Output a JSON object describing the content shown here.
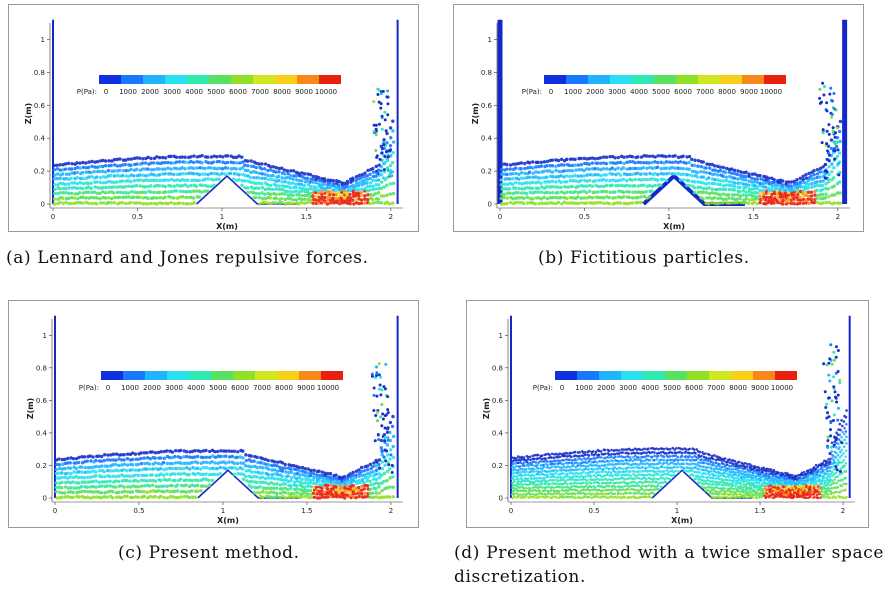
{
  "colorbar": {
    "label": "P(Pa):",
    "ticks": [
      "0",
      "1000",
      "2000",
      "3000",
      "4000",
      "5000",
      "6000",
      "7000",
      "8000",
      "9000",
      "10000"
    ],
    "colors": [
      "#1030e0",
      "#1a78ff",
      "#20b4ff",
      "#28e0f0",
      "#30e8b0",
      "#58e060",
      "#90e028",
      "#d0e820",
      "#f8d018",
      "#f88818",
      "#e82010"
    ]
  },
  "axes": {
    "xlabel": "X(m)",
    "ylabel": "Z(m)",
    "xticks": [
      "0",
      "0.5",
      "1",
      "1.5",
      "2"
    ],
    "yticks": [
      "0",
      "0.2",
      "0.4",
      "0.6",
      "0.8",
      "1"
    ]
  },
  "panels": [
    {
      "id": "a",
      "caption": "(a)  Lennard and Jones repulsive forces."
    },
    {
      "id": "b",
      "caption": "(b)  Fictitious particles."
    },
    {
      "id": "c",
      "caption": "(c)  Present method."
    },
    {
      "id": "d",
      "caption": "(d)  Present method with a twice smaller space discretization."
    }
  ]
}
